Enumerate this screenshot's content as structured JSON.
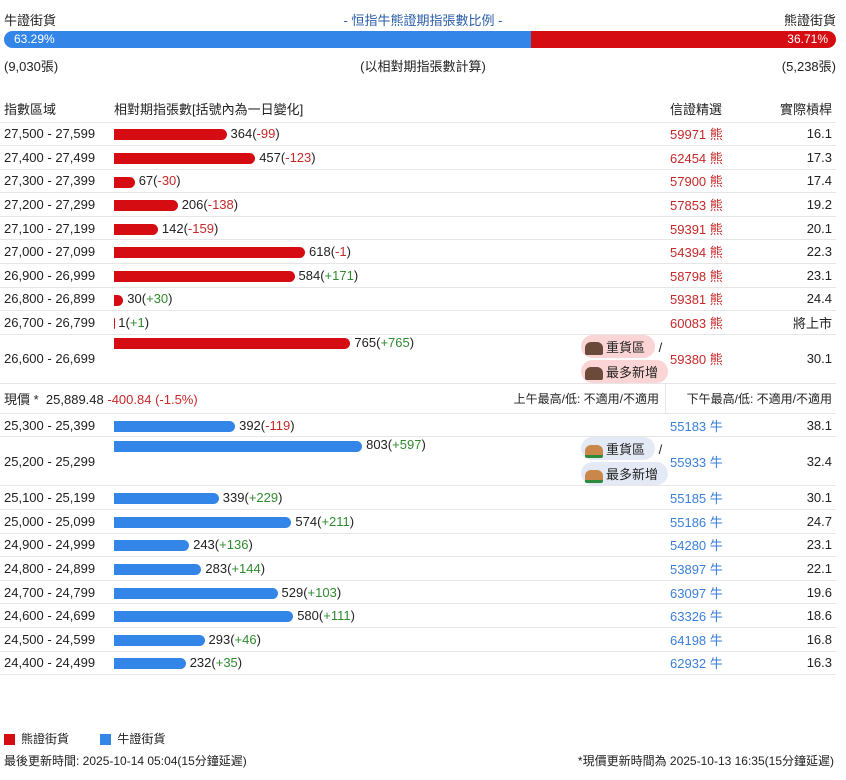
{
  "header": {
    "bull_label": "牛證街貨",
    "title": "- 恒指牛熊證期指張數比例 -",
    "bear_label": "熊證街貨",
    "bull_pct": "63.29%",
    "bear_pct": "36.71%",
    "bull_pct_value": 63.29,
    "bull_count": "(9,030張)",
    "basis": "(以相對期指張數計算)",
    "bear_count": "(5,238張)"
  },
  "columns": {
    "range": "指數區域",
    "contracts": "相對期指張數[括號內為一日變化]",
    "signal": "信證精選",
    "strike": "實際槓桿"
  },
  "bear_rows": [
    {
      "range": "27,500 - 27,599",
      "value": 364,
      "count": "364",
      "change": "-99",
      "signal": "59971 熊",
      "strike": "16.1"
    },
    {
      "range": "27,400 - 27,499",
      "value": 457,
      "count": "457",
      "change": "-123",
      "signal": "62454 熊",
      "strike": "17.3"
    },
    {
      "range": "27,300 - 27,399",
      "value": 67,
      "count": "67",
      "change": "-30",
      "signal": "57900 熊",
      "strike": "17.4"
    },
    {
      "range": "27,200 - 27,299",
      "value": 206,
      "count": "206",
      "change": "-138",
      "signal": "57853 熊",
      "strike": "19.2"
    },
    {
      "range": "27,100 - 27,199",
      "value": 142,
      "count": "142",
      "change": "-159",
      "signal": "59391 熊",
      "strike": "20.1"
    },
    {
      "range": "27,000 - 27,099",
      "value": 618,
      "count": "618",
      "change": "-1",
      "signal": "54394 熊",
      "strike": "22.3"
    },
    {
      "range": "26,900 - 26,999",
      "value": 584,
      "count": "584",
      "change": "+171",
      "signal": "58798 熊",
      "strike": "23.1"
    },
    {
      "range": "26,800 - 26,899",
      "value": 30,
      "count": "30",
      "change": "+30",
      "signal": "59381 熊",
      "strike": "24.4"
    },
    {
      "range": "26,700 - 26,799",
      "value": 1,
      "count": "1",
      "change": "+1",
      "signal": "60083 熊",
      "strike": "將上市"
    },
    {
      "range": "26,600 - 26,699",
      "value": 765,
      "count": "765",
      "change": "+765",
      "signal": "59380 熊",
      "strike": "30.1",
      "badges": [
        "重貨區",
        "最多新增"
      ]
    }
  ],
  "price": {
    "label": "現價 *",
    "value": "25,889.48",
    "change": "-400.84 (-1.5%)",
    "am": "上午最高/低: 不適用/不適用",
    "pm": "下午最高/低: 不適用/不適用"
  },
  "bull_rows": [
    {
      "range": "25,300 - 25,399",
      "value": 392,
      "count": "392",
      "change": "-119",
      "signal": "55183 牛",
      "strike": "38.1"
    },
    {
      "range": "25,200 - 25,299",
      "value": 803,
      "count": "803",
      "change": "+597",
      "signal": "55933 牛",
      "strike": "32.4",
      "badges": [
        "重貨區",
        "最多新增"
      ]
    },
    {
      "range": "25,100 - 25,199",
      "value": 339,
      "count": "339",
      "change": "+229",
      "signal": "55185 牛",
      "strike": "30.1"
    },
    {
      "range": "25,000 - 25,099",
      "value": 574,
      "count": "574",
      "change": "+211",
      "signal": "55186 牛",
      "strike": "24.7"
    },
    {
      "range": "24,900 - 24,999",
      "value": 243,
      "count": "243",
      "change": "+136",
      "signal": "54280 牛",
      "strike": "23.1"
    },
    {
      "range": "24,800 - 24,899",
      "value": 283,
      "count": "283",
      "change": "+144",
      "signal": "53897 牛",
      "strike": "22.1"
    },
    {
      "range": "24,700 - 24,799",
      "value": 529,
      "count": "529",
      "change": "+103",
      "signal": "63097 牛",
      "strike": "19.6"
    },
    {
      "range": "24,600 - 24,699",
      "value": 580,
      "count": "580",
      "change": "+111",
      "signal": "63326 牛",
      "strike": "18.6"
    },
    {
      "range": "24,500 - 24,599",
      "value": 293,
      "count": "293",
      "change": "+46",
      "signal": "64198 牛",
      "strike": "16.8"
    },
    {
      "range": "24,400 - 24,499",
      "value": 232,
      "count": "232",
      "change": "+35",
      "signal": "62932 牛",
      "strike": "16.3"
    }
  ],
  "legend": {
    "bear": "熊證街貨",
    "bull": "牛證街貨"
  },
  "footer": {
    "updated": "最後更新時間: 2025-10-14 05:04(15分鐘延遲)",
    "price_updated": "*現價更新時間為 2025-10-13 16:35(15分鐘延遲)"
  },
  "colors": {
    "bear": "#d50c11",
    "bull": "#3385e8"
  }
}
